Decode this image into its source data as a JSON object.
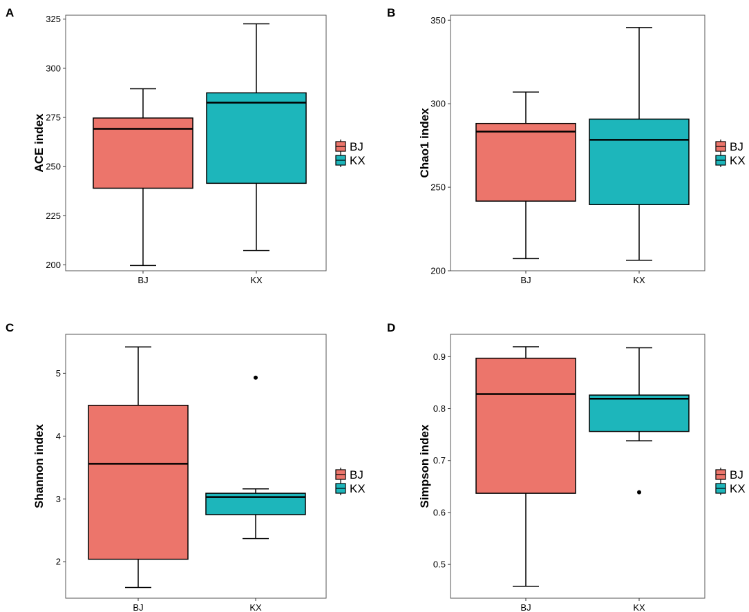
{
  "figure": {
    "colors": {
      "BJ": "#EC756B",
      "KX": "#1DB6BB",
      "frame": "#555555",
      "line": "#000000"
    },
    "legend": [
      "BJ",
      "KX"
    ]
  },
  "chart_data": [
    {
      "panel": "A",
      "type": "box",
      "ylabel": "ACE index",
      "ylim": [
        197,
        327
      ],
      "yticks": [
        200,
        225,
        250,
        275,
        300,
        325
      ],
      "categories": [
        "BJ",
        "KX"
      ],
      "boxes": [
        {
          "group": "BJ",
          "min": 199.7,
          "q1": 239.0,
          "median": 269.2,
          "q3": 274.7,
          "max": 289.6,
          "outliers": []
        },
        {
          "group": "KX",
          "min": 207.3,
          "q1": 241.5,
          "median": 282.5,
          "q3": 287.5,
          "max": 322.6,
          "outliers": []
        }
      ]
    },
    {
      "panel": "B",
      "type": "box",
      "ylabel": "Chao1 index",
      "ylim": [
        200,
        353
      ],
      "yticks": [
        200,
        250,
        300,
        350
      ],
      "categories": [
        "BJ",
        "KX"
      ],
      "boxes": [
        {
          "group": "BJ",
          "min": 207.3,
          "q1": 241.7,
          "median": 283.3,
          "q3": 288.2,
          "max": 307.0,
          "outliers": []
        },
        {
          "group": "KX",
          "min": 206.3,
          "q1": 239.6,
          "median": 278.4,
          "q3": 290.8,
          "max": 345.6,
          "outliers": []
        }
      ]
    },
    {
      "panel": "C",
      "type": "box",
      "ylabel": "Shannon index",
      "ylim": [
        1.42,
        5.62
      ],
      "yticks": [
        2,
        3,
        4,
        5
      ],
      "categories": [
        "BJ",
        "KX"
      ],
      "boxes": [
        {
          "group": "BJ",
          "min": 1.59,
          "q1": 2.04,
          "median": 3.56,
          "q3": 4.49,
          "max": 5.42,
          "outliers": []
        },
        {
          "group": "KX",
          "min": 2.37,
          "q1": 2.75,
          "median": 3.03,
          "q3": 3.09,
          "max": 3.16,
          "outliers": [
            4.93
          ]
        }
      ]
    },
    {
      "panel": "D",
      "type": "box",
      "ylabel": "Simpson index",
      "ylim": [
        0.435,
        0.943
      ],
      "yticks": [
        0.5,
        0.6,
        0.7,
        0.8,
        0.9
      ],
      "categories": [
        "BJ",
        "KX"
      ],
      "boxes": [
        {
          "group": "BJ",
          "min": 0.458,
          "q1": 0.637,
          "median": 0.828,
          "q3": 0.897,
          "max": 0.919,
          "outliers": []
        },
        {
          "group": "KX",
          "min": 0.738,
          "q1": 0.756,
          "median": 0.819,
          "q3": 0.826,
          "max": 0.917,
          "outliers": [
            0.639
          ]
        }
      ]
    }
  ]
}
